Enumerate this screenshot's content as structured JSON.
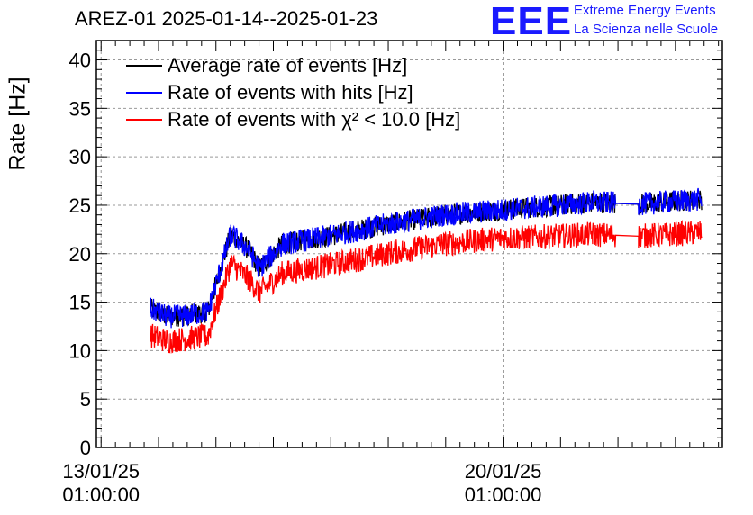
{
  "title": "AREZ-01 2025-01-14--2025-01-23",
  "logo": {
    "mark": "EEE",
    "line1": "Extreme Energy Events",
    "line2": "La Scienza nelle Scuole",
    "color": "#1a1aff"
  },
  "chart_data": {
    "type": "line",
    "ylabel": "Rate [Hz]",
    "ylim": [
      0,
      42
    ],
    "yticks": [
      0,
      5,
      10,
      15,
      20,
      25,
      30,
      35,
      40
    ],
    "xlim_days": [
      12.96,
      23.86
    ],
    "xtick_labels": [
      {
        "day": 13.042,
        "line1": "13/01/25",
        "line2": "01:00:00"
      },
      {
        "day": 20.042,
        "line1": "20/01/25",
        "line2": "01:00:00"
      }
    ],
    "grid": true,
    "legend_position": "top-left",
    "series": [
      {
        "name": "Average rate of events [Hz]",
        "color": "#000000",
        "points": [
          [
            13.9,
            14.3
          ],
          [
            14.2,
            13.5
          ],
          [
            14.5,
            13.6
          ],
          [
            14.9,
            14.0
          ],
          [
            15.3,
            22.0
          ],
          [
            15.6,
            20.5
          ],
          [
            15.8,
            18.5
          ],
          [
            16.2,
            21.0
          ],
          [
            17.0,
            21.8
          ],
          [
            18.0,
            23.0
          ],
          [
            19.0,
            24.0
          ],
          [
            20.0,
            24.5
          ],
          [
            21.0,
            25.0
          ],
          [
            21.6,
            25.3
          ],
          [
            22.0,
            25.2
          ],
          [
            22.4,
            25.1
          ],
          [
            23.0,
            25.4
          ],
          [
            23.5,
            25.6
          ]
        ]
      },
      {
        "name": "Rate of events with hits [Hz]",
        "color": "#0000ff",
        "points": [
          [
            13.9,
            14.3
          ],
          [
            14.2,
            13.5
          ],
          [
            14.5,
            13.6
          ],
          [
            14.9,
            14.0
          ],
          [
            15.3,
            22.0
          ],
          [
            15.6,
            20.5
          ],
          [
            15.8,
            18.5
          ],
          [
            16.2,
            21.0
          ],
          [
            17.0,
            21.8
          ],
          [
            18.0,
            23.0
          ],
          [
            19.0,
            24.0
          ],
          [
            20.0,
            24.5
          ],
          [
            21.0,
            25.0
          ],
          [
            21.6,
            25.3
          ],
          [
            22.0,
            25.2
          ],
          [
            22.4,
            25.1
          ],
          [
            23.0,
            25.4
          ],
          [
            23.5,
            25.6
          ]
        ]
      },
      {
        "name": "Rate of events with χ² < 10.0 [Hz]",
        "color": "#ff0000",
        "points": [
          [
            13.9,
            11.6
          ],
          [
            14.2,
            11.0
          ],
          [
            14.5,
            11.2
          ],
          [
            14.9,
            11.5
          ],
          [
            15.3,
            19.0
          ],
          [
            15.6,
            17.5
          ],
          [
            15.8,
            16.0
          ],
          [
            16.2,
            18.0
          ],
          [
            17.0,
            18.8
          ],
          [
            18.0,
            20.0
          ],
          [
            19.0,
            21.0
          ],
          [
            20.0,
            21.6
          ],
          [
            21.0,
            21.8
          ],
          [
            21.6,
            22.0
          ],
          [
            22.0,
            21.9
          ],
          [
            22.4,
            21.8
          ],
          [
            23.0,
            22.0
          ],
          [
            23.5,
            22.2
          ]
        ]
      }
    ]
  }
}
